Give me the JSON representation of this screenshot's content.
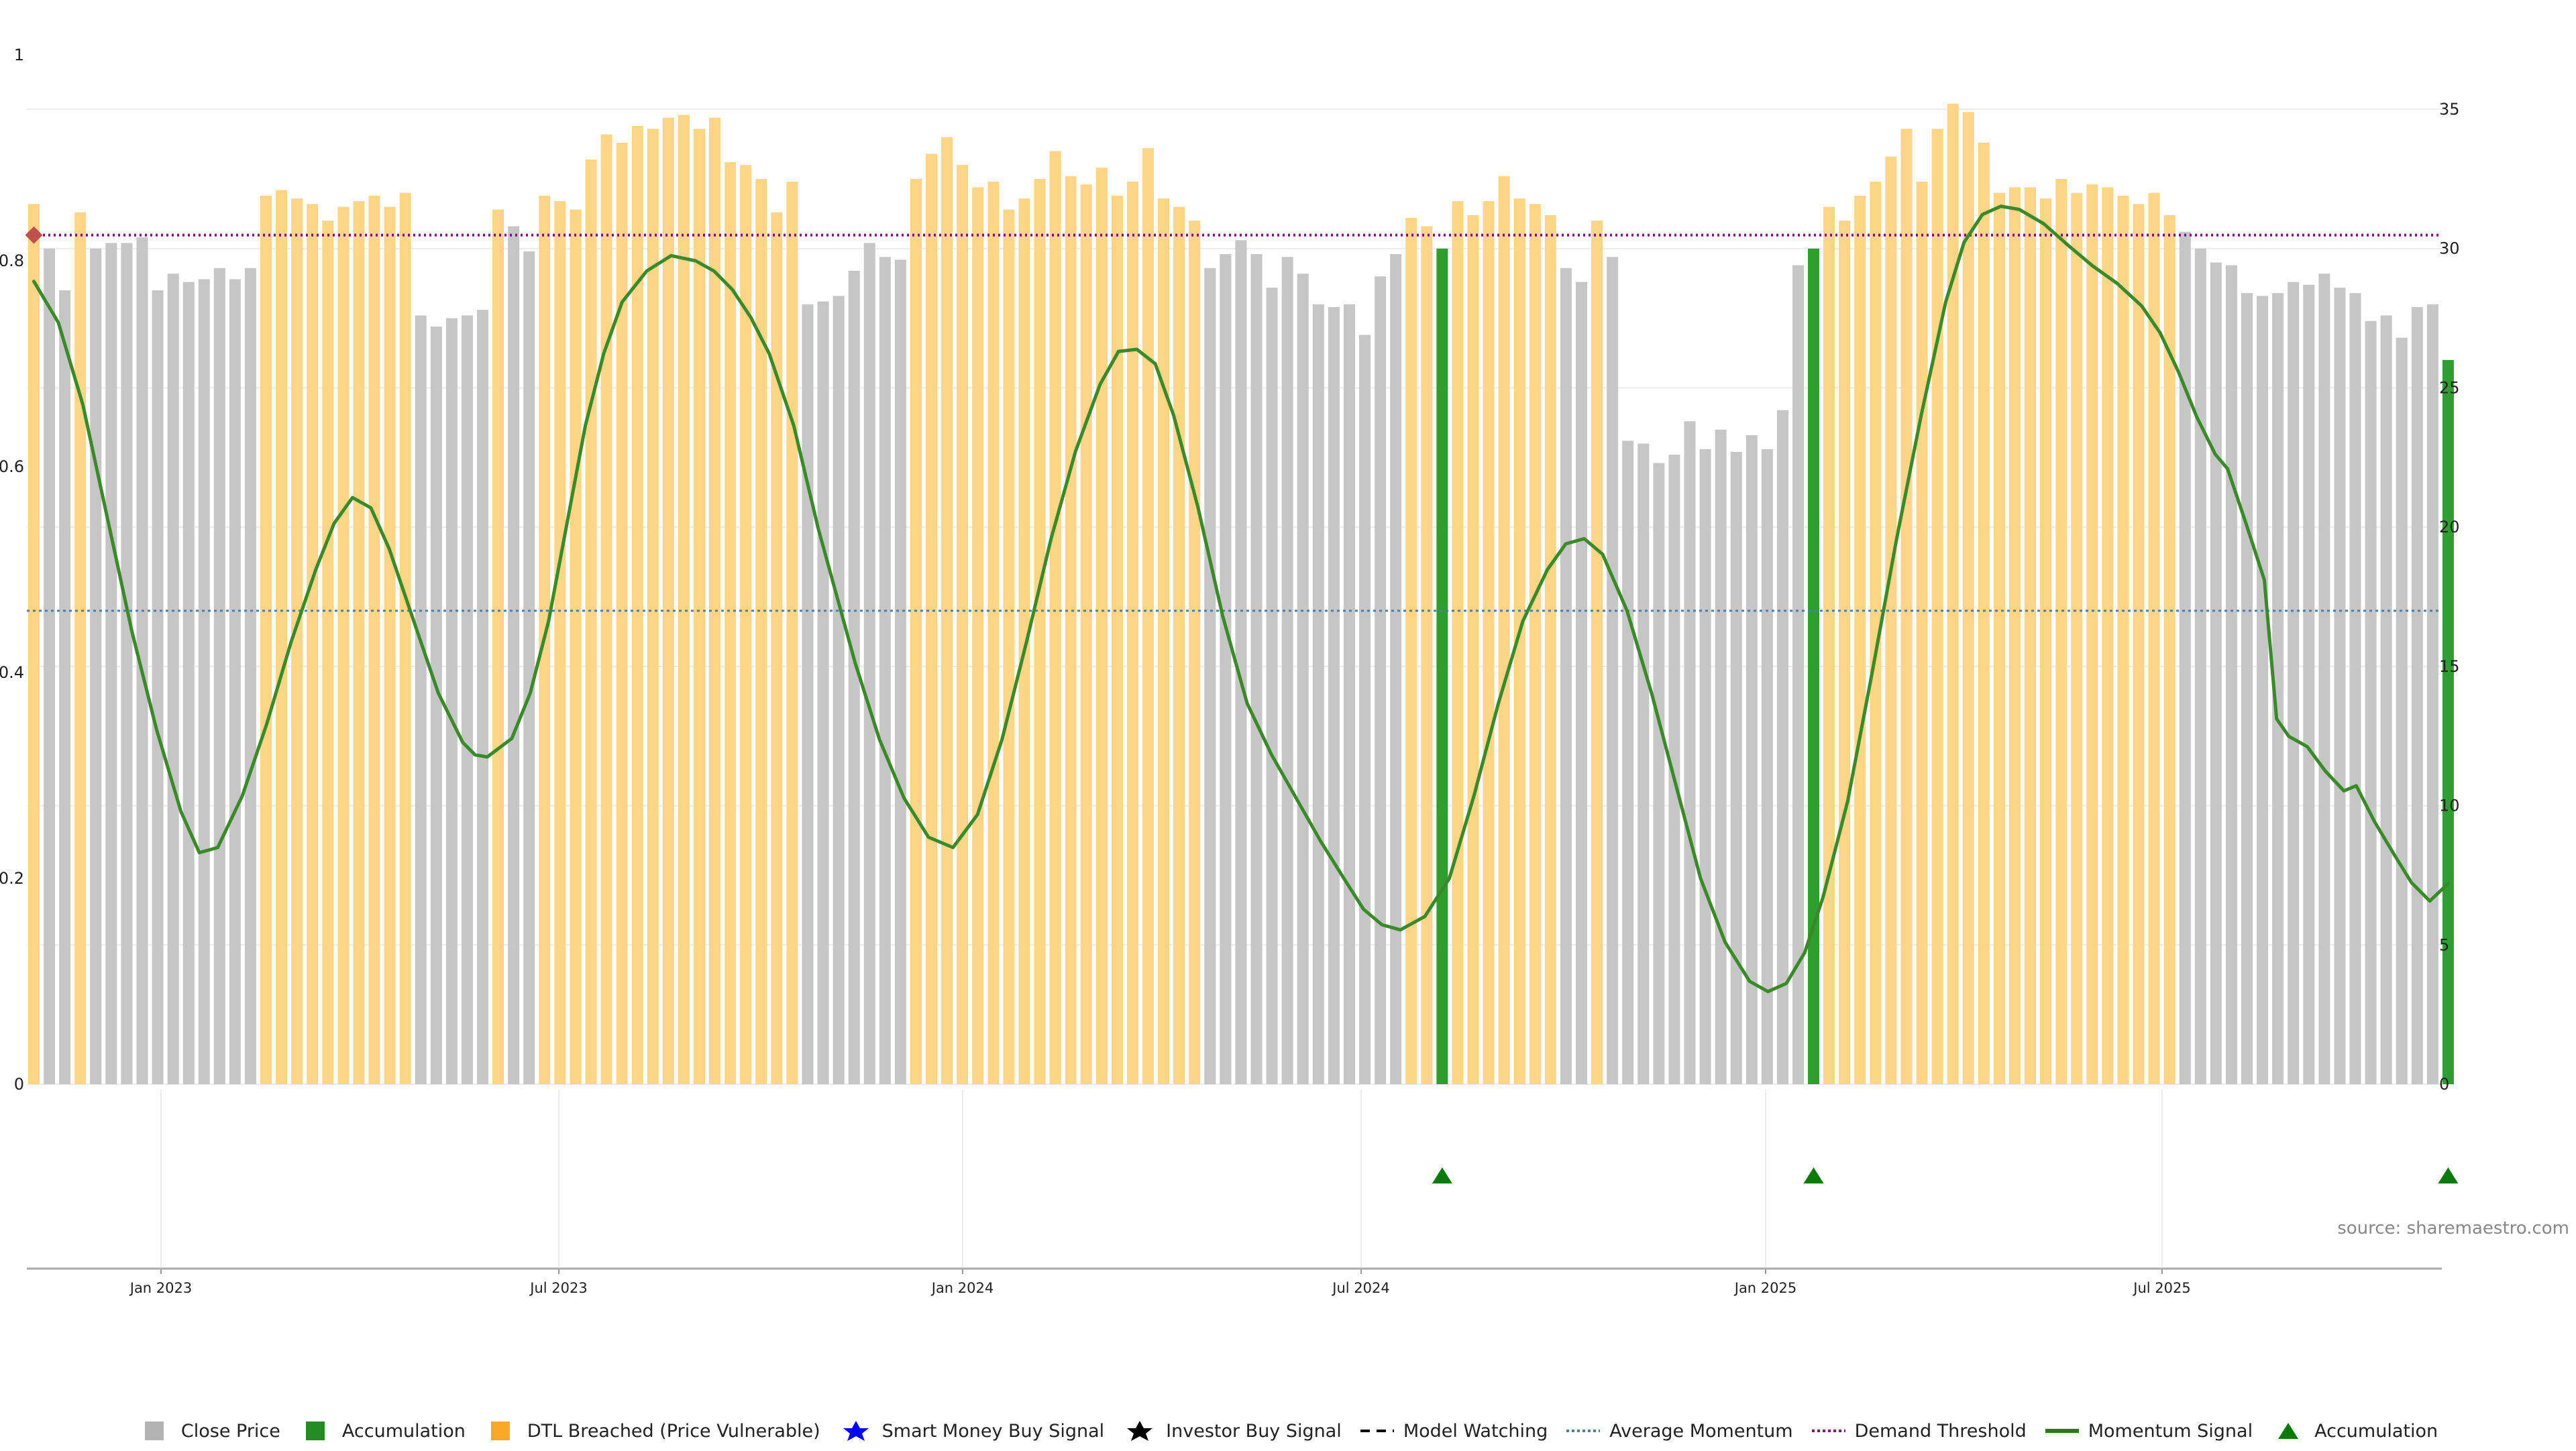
{
  "chart_data": {
    "type": "bar",
    "source": "source: sharemaestro.com",
    "left_axis": {
      "range": [
        0,
        1
      ],
      "ticks": [
        "0",
        "0.2",
        "0.4",
        "0.6",
        "0.8",
        "1"
      ]
    },
    "right_axis": {
      "range": [
        0,
        35
      ],
      "ticks": [
        "0",
        "5",
        "10",
        "15",
        "20",
        "25",
        "30",
        "35"
      ]
    },
    "x_axis": {
      "ticks": [
        "Jan 2023",
        "Jul 2023",
        "Jan 2024",
        "Jul 2024",
        "Jan 2025",
        "Jul 2025"
      ]
    },
    "grid": true,
    "legend_placement": "bottom",
    "colors": {
      "close_price": "#c6c6c6",
      "dtl_breached": "#fdd587",
      "accumulation": "#2e9e2e",
      "momentum": "#3a8a2a",
      "average_momentum": "#4a7fb0",
      "demand_threshold": "#800080"
    },
    "demand_threshold": 0.825,
    "average_momentum": 0.46,
    "bars": [
      {
        "v": 31.6,
        "t": "o"
      },
      {
        "v": 30.0,
        "t": "g"
      },
      {
        "v": 28.5,
        "t": "g"
      },
      {
        "v": 31.3,
        "t": "o"
      },
      {
        "v": 30.0,
        "t": "g"
      },
      {
        "v": 30.2,
        "t": "g"
      },
      {
        "v": 30.2,
        "t": "g"
      },
      {
        "v": 30.4,
        "t": "g"
      },
      {
        "v": 28.5,
        "t": "g"
      },
      {
        "v": 29.1,
        "t": "g"
      },
      {
        "v": 28.8,
        "t": "g"
      },
      {
        "v": 28.9,
        "t": "g"
      },
      {
        "v": 29.3,
        "t": "g"
      },
      {
        "v": 28.9,
        "t": "g"
      },
      {
        "v": 29.3,
        "t": "g"
      },
      {
        "v": 31.9,
        "t": "o"
      },
      {
        "v": 32.1,
        "t": "o"
      },
      {
        "v": 31.8,
        "t": "o"
      },
      {
        "v": 31.6,
        "t": "o"
      },
      {
        "v": 31.0,
        "t": "o"
      },
      {
        "v": 31.5,
        "t": "o"
      },
      {
        "v": 31.7,
        "t": "o"
      },
      {
        "v": 31.9,
        "t": "o"
      },
      {
        "v": 31.5,
        "t": "o"
      },
      {
        "v": 32.0,
        "t": "o"
      },
      {
        "v": 27.6,
        "t": "g"
      },
      {
        "v": 27.2,
        "t": "g"
      },
      {
        "v": 27.5,
        "t": "g"
      },
      {
        "v": 27.6,
        "t": "g"
      },
      {
        "v": 27.8,
        "t": "g"
      },
      {
        "v": 31.4,
        "t": "o"
      },
      {
        "v": 30.8,
        "t": "g"
      },
      {
        "v": 29.9,
        "t": "g"
      },
      {
        "v": 31.9,
        "t": "o"
      },
      {
        "v": 31.7,
        "t": "o"
      },
      {
        "v": 31.4,
        "t": "o"
      },
      {
        "v": 33.2,
        "t": "o"
      },
      {
        "v": 34.1,
        "t": "o"
      },
      {
        "v": 33.8,
        "t": "o"
      },
      {
        "v": 34.4,
        "t": "o"
      },
      {
        "v": 34.3,
        "t": "o"
      },
      {
        "v": 34.7,
        "t": "o"
      },
      {
        "v": 34.8,
        "t": "o"
      },
      {
        "v": 34.3,
        "t": "o"
      },
      {
        "v": 34.7,
        "t": "o"
      },
      {
        "v": 33.1,
        "t": "o"
      },
      {
        "v": 33.0,
        "t": "o"
      },
      {
        "v": 32.5,
        "t": "o"
      },
      {
        "v": 31.3,
        "t": "o"
      },
      {
        "v": 32.4,
        "t": "o"
      },
      {
        "v": 28.0,
        "t": "g"
      },
      {
        "v": 28.1,
        "t": "g"
      },
      {
        "v": 28.3,
        "t": "g"
      },
      {
        "v": 29.2,
        "t": "g"
      },
      {
        "v": 30.2,
        "t": "g"
      },
      {
        "v": 29.7,
        "t": "g"
      },
      {
        "v": 29.6,
        "t": "g"
      },
      {
        "v": 32.5,
        "t": "o"
      },
      {
        "v": 33.4,
        "t": "o"
      },
      {
        "v": 34.0,
        "t": "o"
      },
      {
        "v": 33.0,
        "t": "o"
      },
      {
        "v": 32.2,
        "t": "o"
      },
      {
        "v": 32.4,
        "t": "o"
      },
      {
        "v": 31.4,
        "t": "o"
      },
      {
        "v": 31.8,
        "t": "o"
      },
      {
        "v": 32.5,
        "t": "o"
      },
      {
        "v": 33.5,
        "t": "o"
      },
      {
        "v": 32.6,
        "t": "o"
      },
      {
        "v": 32.3,
        "t": "o"
      },
      {
        "v": 32.9,
        "t": "o"
      },
      {
        "v": 31.9,
        "t": "o"
      },
      {
        "v": 32.4,
        "t": "o"
      },
      {
        "v": 33.6,
        "t": "o"
      },
      {
        "v": 31.8,
        "t": "o"
      },
      {
        "v": 31.5,
        "t": "o"
      },
      {
        "v": 31.0,
        "t": "o"
      },
      {
        "v": 29.3,
        "t": "g"
      },
      {
        "v": 29.8,
        "t": "g"
      },
      {
        "v": 30.3,
        "t": "g"
      },
      {
        "v": 29.8,
        "t": "g"
      },
      {
        "v": 28.6,
        "t": "g"
      },
      {
        "v": 29.7,
        "t": "g"
      },
      {
        "v": 29.1,
        "t": "g"
      },
      {
        "v": 28.0,
        "t": "g"
      },
      {
        "v": 27.9,
        "t": "g"
      },
      {
        "v": 28.0,
        "t": "g"
      },
      {
        "v": 26.9,
        "t": "g"
      },
      {
        "v": 29.0,
        "t": "g"
      },
      {
        "v": 29.8,
        "t": "g"
      },
      {
        "v": 31.1,
        "t": "o"
      },
      {
        "v": 30.8,
        "t": "o"
      },
      {
        "v": 30.0,
        "t": "a"
      },
      {
        "v": 31.7,
        "t": "o"
      },
      {
        "v": 31.2,
        "t": "o"
      },
      {
        "v": 31.7,
        "t": "o"
      },
      {
        "v": 32.6,
        "t": "o"
      },
      {
        "v": 31.8,
        "t": "o"
      },
      {
        "v": 31.6,
        "t": "o"
      },
      {
        "v": 31.2,
        "t": "o"
      },
      {
        "v": 29.3,
        "t": "g"
      },
      {
        "v": 28.8,
        "t": "g"
      },
      {
        "v": 31.0,
        "t": "o"
      },
      {
        "v": 29.7,
        "t": "g"
      },
      {
        "v": 23.1,
        "t": "g"
      },
      {
        "v": 23.0,
        "t": "g"
      },
      {
        "v": 22.3,
        "t": "g"
      },
      {
        "v": 22.6,
        "t": "g"
      },
      {
        "v": 23.8,
        "t": "g"
      },
      {
        "v": 22.8,
        "t": "g"
      },
      {
        "v": 23.5,
        "t": "g"
      },
      {
        "v": 22.7,
        "t": "g"
      },
      {
        "v": 23.3,
        "t": "g"
      },
      {
        "v": 22.8,
        "t": "g"
      },
      {
        "v": 24.2,
        "t": "g"
      },
      {
        "v": 29.4,
        "t": "g"
      },
      {
        "v": 30.0,
        "t": "a"
      },
      {
        "v": 31.5,
        "t": "o"
      },
      {
        "v": 31.0,
        "t": "o"
      },
      {
        "v": 31.9,
        "t": "o"
      },
      {
        "v": 32.4,
        "t": "o"
      },
      {
        "v": 33.3,
        "t": "o"
      },
      {
        "v": 34.3,
        "t": "o"
      },
      {
        "v": 32.4,
        "t": "o"
      },
      {
        "v": 34.3,
        "t": "o"
      },
      {
        "v": 35.2,
        "t": "o"
      },
      {
        "v": 34.9,
        "t": "o"
      },
      {
        "v": 33.8,
        "t": "o"
      },
      {
        "v": 32.0,
        "t": "o"
      },
      {
        "v": 32.2,
        "t": "o"
      },
      {
        "v": 32.2,
        "t": "o"
      },
      {
        "v": 31.8,
        "t": "o"
      },
      {
        "v": 32.5,
        "t": "o"
      },
      {
        "v": 32.0,
        "t": "o"
      },
      {
        "v": 32.3,
        "t": "o"
      },
      {
        "v": 32.2,
        "t": "o"
      },
      {
        "v": 31.9,
        "t": "o"
      },
      {
        "v": 31.6,
        "t": "o"
      },
      {
        "v": 32.0,
        "t": "o"
      },
      {
        "v": 31.2,
        "t": "o"
      },
      {
        "v": 30.6,
        "t": "g"
      },
      {
        "v": 30.0,
        "t": "g"
      },
      {
        "v": 29.5,
        "t": "g"
      },
      {
        "v": 29.4,
        "t": "g"
      },
      {
        "v": 28.4,
        "t": "g"
      },
      {
        "v": 28.3,
        "t": "g"
      },
      {
        "v": 28.4,
        "t": "g"
      },
      {
        "v": 28.8,
        "t": "g"
      },
      {
        "v": 28.7,
        "t": "g"
      },
      {
        "v": 29.1,
        "t": "g"
      },
      {
        "v": 28.6,
        "t": "g"
      },
      {
        "v": 28.4,
        "t": "g"
      },
      {
        "v": 27.4,
        "t": "g"
      },
      {
        "v": 27.6,
        "t": "g"
      },
      {
        "v": 26.8,
        "t": "g"
      },
      {
        "v": 27.9,
        "t": "g"
      },
      {
        "v": 28.0,
        "t": "g"
      },
      {
        "v": 26.0,
        "t": "a"
      }
    ],
    "momentum": [
      [
        0,
        0.78
      ],
      [
        4,
        0.74
      ],
      [
        8,
        0.66
      ],
      [
        12,
        0.55
      ],
      [
        16,
        0.44
      ],
      [
        20,
        0.345
      ],
      [
        24,
        0.265
      ],
      [
        27,
        0.225
      ],
      [
        30,
        0.23
      ],
      [
        34,
        0.28
      ],
      [
        38,
        0.35
      ],
      [
        42,
        0.43
      ],
      [
        46,
        0.5
      ],
      [
        49,
        0.545
      ],
      [
        52,
        0.57
      ],
      [
        55,
        0.56
      ],
      [
        58,
        0.52
      ],
      [
        62,
        0.45
      ],
      [
        66,
        0.38
      ],
      [
        70,
        0.332
      ],
      [
        72,
        0.32
      ],
      [
        74,
        0.318
      ],
      [
        78,
        0.336
      ],
      [
        81,
        0.38
      ],
      [
        84,
        0.45
      ],
      [
        87,
        0.545
      ],
      [
        90,
        0.64
      ],
      [
        93,
        0.71
      ],
      [
        96,
        0.76
      ],
      [
        100,
        0.79
      ],
      [
        104,
        0.805
      ],
      [
        108,
        0.8
      ],
      [
        111,
        0.79
      ],
      [
        114,
        0.772
      ],
      [
        117,
        0.745
      ],
      [
        120,
        0.71
      ],
      [
        124,
        0.64
      ],
      [
        128,
        0.54
      ],
      [
        131,
        0.475
      ],
      [
        134,
        0.41
      ],
      [
        138,
        0.335
      ],
      [
        142,
        0.278
      ],
      [
        146,
        0.24
      ],
      [
        150,
        0.23
      ],
      [
        154,
        0.262
      ],
      [
        158,
        0.335
      ],
      [
        162,
        0.43
      ],
      [
        166,
        0.53
      ],
      [
        170,
        0.615
      ],
      [
        174,
        0.68
      ],
      [
        177,
        0.712
      ],
      [
        180,
        0.714
      ],
      [
        183,
        0.7
      ],
      [
        186,
        0.65
      ],
      [
        190,
        0.56
      ],
      [
        194,
        0.455
      ],
      [
        198,
        0.37
      ],
      [
        202,
        0.32
      ],
      [
        206,
        0.278
      ],
      [
        210,
        0.236
      ],
      [
        214,
        0.198
      ],
      [
        217,
        0.17
      ],
      [
        220,
        0.155
      ],
      [
        223,
        0.15
      ],
      [
        227,
        0.163
      ],
      [
        231,
        0.2
      ],
      [
        235,
        0.28
      ],
      [
        239,
        0.37
      ],
      [
        243,
        0.45
      ],
      [
        247,
        0.5
      ],
      [
        250,
        0.525
      ],
      [
        253,
        0.53
      ],
      [
        256,
        0.515
      ],
      [
        260,
        0.46
      ],
      [
        264,
        0.38
      ],
      [
        268,
        0.29
      ],
      [
        272,
        0.2
      ],
      [
        276,
        0.138
      ],
      [
        280,
        0.1
      ],
      [
        283,
        0.09
      ],
      [
        286,
        0.098
      ],
      [
        289,
        0.128
      ],
      [
        292,
        0.182
      ],
      [
        296,
        0.275
      ],
      [
        300,
        0.4
      ],
      [
        304,
        0.53
      ],
      [
        308,
        0.65
      ],
      [
        312,
        0.76
      ],
      [
        315,
        0.818
      ],
      [
        318,
        0.845
      ],
      [
        321,
        0.853
      ],
      [
        324,
        0.85
      ],
      [
        328,
        0.836
      ],
      [
        332,
        0.815
      ],
      [
        336,
        0.795
      ],
      [
        340,
        0.778
      ],
      [
        344,
        0.756
      ],
      [
        347,
        0.73
      ],
      [
        350,
        0.692
      ],
      [
        353,
        0.648
      ],
      [
        356,
        0.612
      ],
      [
        358,
        0.598
      ],
      [
        361,
        0.545
      ],
      [
        364,
        0.49
      ],
      [
        366,
        0.355
      ],
      [
        368,
        0.338
      ],
      [
        371,
        0.328
      ],
      [
        374,
        0.304
      ],
      [
        377,
        0.285
      ],
      [
        379,
        0.29
      ],
      [
        382,
        0.255
      ],
      [
        385,
        0.225
      ],
      [
        388,
        0.196
      ],
      [
        391,
        0.178
      ],
      [
        394,
        0.195
      ]
    ],
    "start_marker": {
      "x": 0,
      "value": 0.825
    },
    "triangles_at_bars": [
      91,
      115,
      156
    ],
    "legend": [
      {
        "label": "Close Price",
        "symbol": "square",
        "color": "#b3b3b3"
      },
      {
        "label": "Accumulation",
        "symbol": "square",
        "color": "#228b22"
      },
      {
        "label": "DTL Breached (Price Vulnerable)",
        "symbol": "square",
        "color": "#f9a825"
      },
      {
        "label": "Smart Money Buy Signal",
        "symbol": "star",
        "color": "#0000ff"
      },
      {
        "label": "Investor Buy Signal",
        "symbol": "star",
        "color": "#000000"
      },
      {
        "label": "Model Watching",
        "symbol": "dashed",
        "color": "#000000"
      },
      {
        "label": "Average Momentum",
        "symbol": "dotted",
        "color": "#4a7fb0"
      },
      {
        "label": "Demand Threshold",
        "symbol": "dotted",
        "color": "#800080"
      },
      {
        "label": "Momentum Signal",
        "symbol": "line",
        "color": "#2a7a1a"
      },
      {
        "label": "Accumulation",
        "symbol": "triangle",
        "color": "#0a7a0a"
      }
    ]
  }
}
